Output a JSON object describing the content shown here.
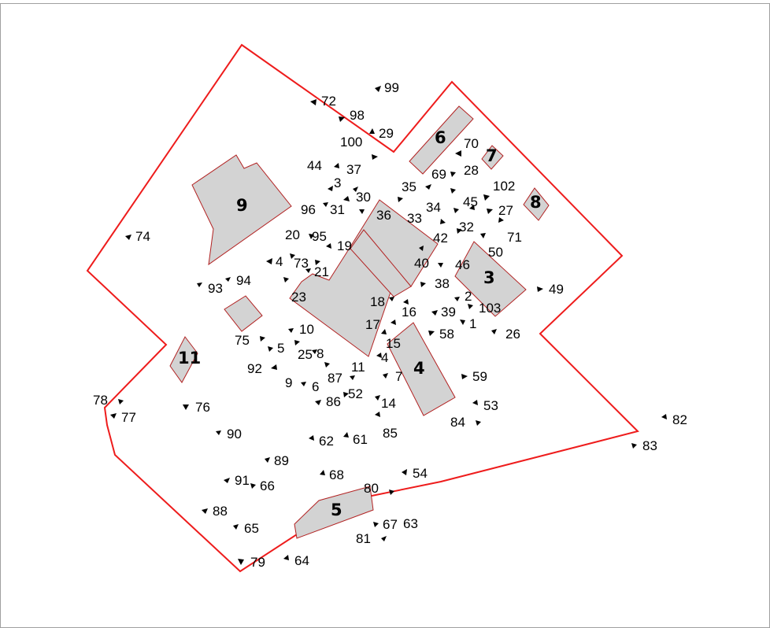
{
  "map": {
    "colors": {
      "boundary": "#ee1c1c",
      "building_fill": "#d3d3d3",
      "building_stroke": "#b22222",
      "label": "#000000"
    },
    "buildings": [
      {
        "id": "9",
        "label": "9"
      },
      {
        "id": "6",
        "label": "6"
      },
      {
        "id": "7",
        "label": "7"
      },
      {
        "id": "8",
        "label": "8"
      },
      {
        "id": "36",
        "label": ""
      },
      {
        "id": "3",
        "label": "3"
      },
      {
        "id": "4",
        "label": "4"
      },
      {
        "id": "11",
        "label": "11"
      },
      {
        "id": "5",
        "label": "5"
      },
      {
        "id": "small",
        "label": ""
      }
    ],
    "points": [
      "99",
      "72",
      "98",
      "29",
      "100",
      "44",
      "37",
      "3",
      "30",
      "35",
      "69",
      "28",
      "70",
      "102",
      "96",
      "31",
      "36",
      "33",
      "34",
      "45",
      "27",
      "32",
      "71",
      "20",
      "95",
      "19",
      "42",
      "50",
      "4",
      "73",
      "21",
      "40",
      "46",
      "93",
      "94",
      "23",
      "38",
      "2",
      "49",
      "18",
      "16",
      "39",
      "103",
      "17",
      "58",
      "1",
      "26",
      "15",
      "75",
      "10",
      "5",
      "25",
      "8",
      "92",
      "11",
      "87",
      "7",
      "4",
      "59",
      "9",
      "6",
      "52",
      "86",
      "14",
      "53",
      "84",
      "85",
      "78",
      "77",
      "76",
      "90",
      "62",
      "61",
      "82",
      "83",
      "89",
      "68",
      "54",
      "91",
      "66",
      "80",
      "88",
      "67",
      "63",
      "65",
      "81",
      "79",
      "64",
      "74",
      "9"
    ]
  }
}
